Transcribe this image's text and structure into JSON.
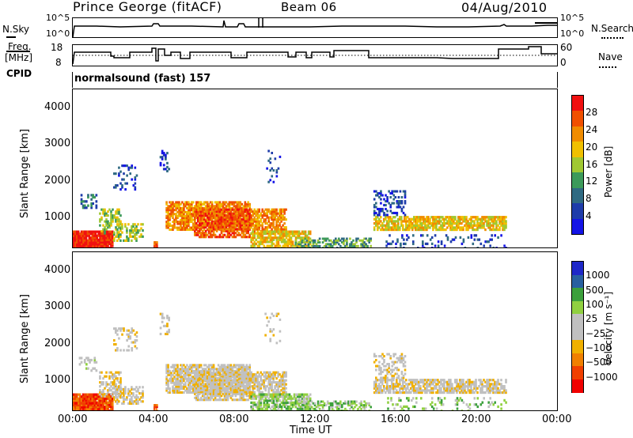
{
  "header": {
    "station": "Prince George (fitACF)",
    "beam": "Beam 06",
    "date": "04/Aug/2010"
  },
  "top_panels": {
    "nsky_label": "N.Sky",
    "nsky_tick_top": "10^5",
    "nsky_tick_bottom": "10^0",
    "nsearch_label": "N.Search",
    "nsearch_tick_top": "10^5",
    "nsearch_tick_bottom": "10^0",
    "freq_label_line1": "Freq.",
    "freq_label_line2": "[MHz]",
    "freq_tick_top": "18",
    "freq_tick_bottom": "8",
    "nave_label": "Nave",
    "nave_tick_top": "60",
    "nave_tick_bottom": "0",
    "cpid_label": "CPID",
    "cpid_value": "normalsound (fast) 157"
  },
  "colors": {
    "power_scale": [
      "#1414e6",
      "#1e3caa",
      "#2f6a82",
      "#3c9a5a",
      "#a0c832",
      "#f0c000",
      "#f08c00",
      "#f05000",
      "#f01010"
    ],
    "velocity_scale": [
      "#f00000",
      "#f04000",
      "#f08000",
      "#f0b000",
      "#c0c0c0",
      "#c0c0c0",
      "#90d040",
      "#3ca03c",
      "#2860a0",
      "#1e28c8"
    ]
  },
  "chart_data": [
    {
      "type": "heatmap",
      "title": "",
      "xlabel": "",
      "ylabel": "Slant Range [km]",
      "x_ticks": [
        "00:00",
        "04:00",
        "08:00",
        "12:00",
        "16:00",
        "20:00",
        "00:00"
      ],
      "y_ticks": [
        "1000",
        "2000",
        "3000",
        "4000"
      ],
      "ylim": [
        180,
        4500
      ],
      "colorbar_label": "Power [dB]",
      "colorbar_ticks": [
        "28",
        "24",
        "20",
        "16",
        "12",
        "8",
        "4"
      ],
      "clim": [
        0,
        32
      ]
    },
    {
      "type": "heatmap",
      "title": "",
      "xlabel": "Time UT",
      "ylabel": "Slant Range [km]",
      "x_ticks": [
        "00:00",
        "04:00",
        "08:00",
        "12:00",
        "16:00",
        "20:00",
        "00:00"
      ],
      "y_ticks": [
        "1000",
        "2000",
        "3000",
        "4000"
      ],
      "ylim": [
        180,
        4500
      ],
      "colorbar_label": "Velocity [m s⁻¹]",
      "colorbar_ticks": [
        "1000",
        "500",
        "100",
        "25",
        "−25",
        "−100",
        "−500",
        "−1000"
      ]
    }
  ]
}
